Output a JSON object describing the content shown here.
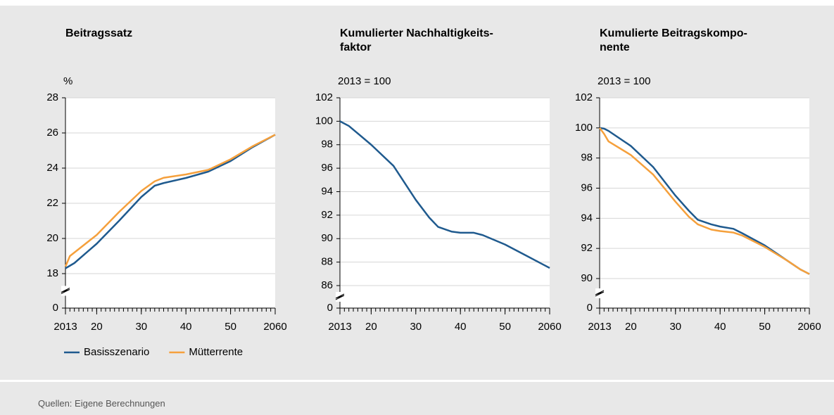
{
  "chart_data": [
    {
      "type": "line",
      "title": "Beitragssatz",
      "unit": "%",
      "x": [
        2013,
        2014,
        2015,
        2020,
        2025,
        2030,
        2033,
        2035,
        2040,
        2045,
        2050,
        2055,
        2060
      ],
      "xlim": [
        2013,
        2060
      ],
      "xticks": [
        2013,
        {
          "value": 2020,
          "label": "20"
        },
        {
          "value": 2030,
          "label": "30"
        },
        {
          "value": 2040,
          "label": "40"
        },
        {
          "value": 2050,
          "label": "50"
        },
        2060
      ],
      "xminor": 1,
      "ylim": [
        0,
        28
      ],
      "yticks": [
        0,
        18,
        20,
        22,
        24,
        26,
        28
      ],
      "ybreak": [
        0,
        18
      ],
      "grid": true,
      "legend": "bottom-left",
      "series": [
        {
          "name": "Basisszenario",
          "color": "#1f5a8e",
          "values": [
            18.3,
            18.45,
            18.6,
            19.7,
            21.0,
            22.36,
            23.0,
            23.15,
            23.44,
            23.8,
            24.4,
            25.2,
            25.9
          ]
        },
        {
          "name": "Mütterrente",
          "color": "#f5a03c",
          "values": [
            18.4,
            19.0,
            19.2,
            20.2,
            21.5,
            22.7,
            23.25,
            23.45,
            23.64,
            23.9,
            24.5,
            25.25,
            25.9
          ]
        }
      ]
    },
    {
      "type": "line",
      "title": "Kumulierter Nachhaltigkeits-\nfaktor",
      "unit": "2013 = 100",
      "x": [
        2013,
        2015,
        2020,
        2025,
        2030,
        2033,
        2035,
        2038,
        2040,
        2043,
        2045,
        2050,
        2055,
        2058,
        2060
      ],
      "xlim": [
        2013,
        2060
      ],
      "xticks": [
        2013,
        {
          "value": 2020,
          "label": "20"
        },
        {
          "value": 2030,
          "label": "30"
        },
        {
          "value": 2040,
          "label": "40"
        },
        {
          "value": 2050,
          "label": "50"
        },
        2060
      ],
      "xminor": 1,
      "ylim": [
        0,
        102
      ],
      "yticks": [
        0,
        86,
        88,
        90,
        92,
        94,
        96,
        98,
        100,
        102
      ],
      "ybreak": [
        0,
        86
      ],
      "grid": true,
      "series": [
        {
          "color": "#1f5a8e",
          "values": [
            100,
            99.6,
            98.0,
            96.2,
            93.3,
            91.8,
            91.0,
            90.6,
            90.5,
            90.5,
            90.3,
            89.5,
            88.5,
            87.9,
            87.5
          ]
        }
      ]
    },
    {
      "type": "line",
      "title": "Kumulierte Beitragskompo-\nnente",
      "unit": "2013 = 100",
      "x": [
        2013,
        2014,
        2015,
        2020,
        2025,
        2030,
        2033,
        2035,
        2038,
        2040,
        2043,
        2045,
        2050,
        2055,
        2058,
        2060
      ],
      "xlim": [
        2013,
        2060
      ],
      "xticks": [
        2013,
        {
          "value": 2020,
          "label": "20"
        },
        {
          "value": 2030,
          "label": "30"
        },
        {
          "value": 2040,
          "label": "40"
        },
        {
          "value": 2050,
          "label": "50"
        },
        2060
      ],
      "xminor": 1,
      "ylim": [
        0,
        102
      ],
      "yticks": [
        0,
        90,
        92,
        94,
        96,
        98,
        100,
        102
      ],
      "ybreak": [
        0,
        90
      ],
      "grid": true,
      "series": [
        {
          "color": "#1f5a8e",
          "values": [
            100,
            99.95,
            99.8,
            98.8,
            97.4,
            95.5,
            94.5,
            93.9,
            93.6,
            93.45,
            93.3,
            93.0,
            92.2,
            91.2,
            90.6,
            90.3
          ]
        },
        {
          "color": "#f5a03c",
          "values": [
            100,
            99.6,
            99.1,
            98.2,
            96.9,
            95.1,
            94.1,
            93.6,
            93.25,
            93.15,
            93.05,
            92.85,
            92.1,
            91.2,
            90.6,
            90.3
          ]
        }
      ]
    }
  ],
  "source": "Quellen: Eigene Berechnungen"
}
